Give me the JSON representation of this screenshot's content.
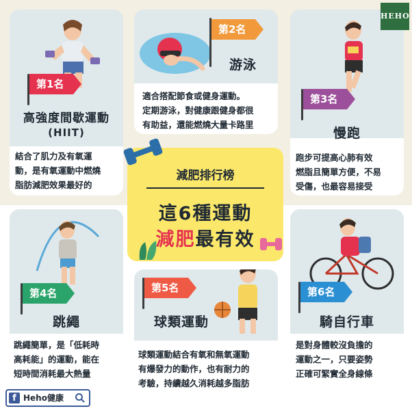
{
  "brand": {
    "logo_text": "HEHO",
    "fb_page_name": "Heho健康",
    "fb_icon": "facebook-f-icon"
  },
  "center": {
    "subtitle": "減肥排行榜",
    "headline_line1": "這6種運動",
    "headline_accent": "減肥",
    "headline_rest": "最有效",
    "accent_color": "#e5334f"
  },
  "rankings": [
    {
      "rank_label": "第1名",
      "title_line1": "高強度間歇運動",
      "title_line2": "(HIIT)",
      "flag_color": "#e5334f",
      "desc": [
        "結合了肌力及有氧運",
        "動，是有氧運動中燃燒",
        "脂肪減肥效果最好的"
      ]
    },
    {
      "rank_label": "第2名",
      "title_line1": "游泳",
      "title_line2": "",
      "flag_color": "#f29a3b",
      "desc": [
        "適合搭配節食或健身運動。",
        "定期游泳，對健康跟健身都很",
        "有助益，還能燃燒大量卡路里"
      ]
    },
    {
      "rank_label": "第3名",
      "title_line1": "慢跑",
      "title_line2": "",
      "flag_color": "#9c4f9b",
      "desc": [
        "跑步可提高心肺有效",
        "燃脂且簡單方便，不易",
        "受傷，也最容易接受"
      ]
    },
    {
      "rank_label": "第4名",
      "title_line1": "跳繩",
      "title_line2": "",
      "flag_color": "#2aa46a",
      "desc": [
        "跳繩簡單，是「低耗時",
        "高耗能」的運動，能在",
        "短時間消耗最大熱量"
      ]
    },
    {
      "rank_label": "第5名",
      "title_line1": "球類運動",
      "title_line2": "",
      "flag_color": "#ef5a45",
      "desc": [
        "球類運動結合有氧和無氧運動",
        "有爆發力的動作，也有耐力的",
        "考驗，持續越久消耗越多脂肪"
      ]
    },
    {
      "rank_label": "第6名",
      "title_line1": "騎自行車",
      "title_line2": "",
      "flag_color": "#2b8fd3",
      "desc": [
        "是對身體較沒負擔的",
        "運動之一，只要姿勢",
        "正確可緊實全身線條"
      ]
    }
  ]
}
